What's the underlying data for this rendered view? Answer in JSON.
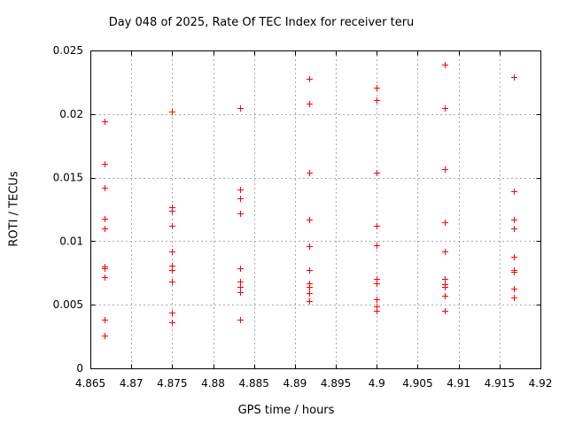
{
  "chart_data": {
    "type": "scatter",
    "title": "Day 048 of 2025, Rate Of TEC Index for receiver teru",
    "xlabel": "GPS time / hours",
    "ylabel": "ROTI / TECUs",
    "xlim": [
      4.865,
      4.92
    ],
    "ylim": [
      0,
      0.025
    ],
    "grid": true,
    "legend_position": "none",
    "marker": "plus",
    "marker_color": "#ff0000",
    "grid_color": "#a8a8a8",
    "axis_color": "#000000",
    "x_ticks": {
      "values": [
        4.865,
        4.87,
        4.875,
        4.88,
        4.885,
        4.89,
        4.895,
        4.9,
        4.905,
        4.91,
        4.915,
        4.92
      ],
      "labels": [
        "4.865",
        "4.87",
        "4.875",
        "4.88",
        "4.885",
        "4.89",
        "4.895",
        "4.9",
        "4.905",
        "4.91",
        "4.915",
        "4.92"
      ]
    },
    "y_ticks": {
      "values": [
        0,
        0.005,
        0.01,
        0.015,
        0.02,
        0.025
      ],
      "labels": [
        "0",
        "0.005",
        "0.01",
        "0.015",
        "0.02",
        "0.025"
      ]
    },
    "series": [
      {
        "name": "ROTI",
        "points": [
          [
            4.8667,
            0.0194
          ],
          [
            4.8667,
            0.0161
          ],
          [
            4.8667,
            0.0142
          ],
          [
            4.8667,
            0.0118
          ],
          [
            4.8667,
            0.011
          ],
          [
            4.8667,
            0.008
          ],
          [
            4.8667,
            0.0079
          ],
          [
            4.8667,
            0.0072
          ],
          [
            4.8667,
            0.0038
          ],
          [
            4.8667,
            0.0026
          ],
          [
            4.875,
            0.0202
          ],
          [
            4.875,
            0.0127
          ],
          [
            4.875,
            0.0124
          ],
          [
            4.875,
            0.0112
          ],
          [
            4.875,
            0.0092
          ],
          [
            4.875,
            0.0081
          ],
          [
            4.875,
            0.0077
          ],
          [
            4.875,
            0.0068
          ],
          [
            4.875,
            0.0044
          ],
          [
            4.875,
            0.0036
          ],
          [
            4.8833,
            0.0205
          ],
          [
            4.8833,
            0.0141
          ],
          [
            4.8833,
            0.0134
          ],
          [
            4.8833,
            0.0122
          ],
          [
            4.8833,
            0.0079
          ],
          [
            4.8833,
            0.0068
          ],
          [
            4.8833,
            0.0064
          ],
          [
            4.8833,
            0.006
          ],
          [
            4.8833,
            0.0038
          ],
          [
            4.8917,
            0.0228
          ],
          [
            4.8917,
            0.0208
          ],
          [
            4.8917,
            0.0154
          ],
          [
            4.8917,
            0.0117
          ],
          [
            4.8917,
            0.0096
          ],
          [
            4.8917,
            0.0077
          ],
          [
            4.8917,
            0.0067
          ],
          [
            4.8917,
            0.0064
          ],
          [
            4.8917,
            0.0059
          ],
          [
            4.8917,
            0.0053
          ],
          [
            4.9,
            0.0221
          ],
          [
            4.9,
            0.0211
          ],
          [
            4.9,
            0.0154
          ],
          [
            4.9,
            0.0112
          ],
          [
            4.9,
            0.0097
          ],
          [
            4.9,
            0.007
          ],
          [
            4.9,
            0.0067
          ],
          [
            4.9,
            0.0054
          ],
          [
            4.9,
            0.0049
          ],
          [
            4.9,
            0.0045
          ],
          [
            4.9083,
            0.0239
          ],
          [
            4.9083,
            0.0205
          ],
          [
            4.9083,
            0.0157
          ],
          [
            4.9083,
            0.0115
          ],
          [
            4.9083,
            0.0092
          ],
          [
            4.9083,
            0.007
          ],
          [
            4.9083,
            0.0066
          ],
          [
            4.9083,
            0.0064
          ],
          [
            4.9083,
            0.0057
          ],
          [
            4.9083,
            0.0045
          ],
          [
            4.9167,
            0.0229
          ],
          [
            4.9167,
            0.0139
          ],
          [
            4.9167,
            0.0117
          ],
          [
            4.9167,
            0.011
          ],
          [
            4.9167,
            0.0088
          ],
          [
            4.9167,
            0.0077
          ],
          [
            4.9167,
            0.0076
          ],
          [
            4.9167,
            0.0063
          ],
          [
            4.9167,
            0.0056
          ]
        ]
      }
    ]
  }
}
